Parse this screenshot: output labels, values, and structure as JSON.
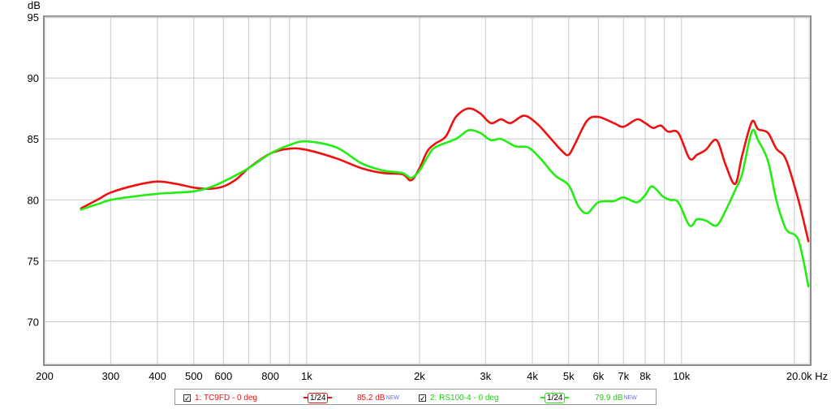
{
  "chart_data": {
    "type": "line",
    "ylabel": "dB",
    "xunit": "Hz",
    "xscale": "log",
    "xlim": [
      200,
      22000
    ],
    "ylim": [
      66.5,
      95
    ],
    "yticks": [
      {
        "value": 95,
        "label": "95"
      },
      {
        "value": 90,
        "label": "90"
      },
      {
        "value": 85,
        "label": "85"
      },
      {
        "value": 80,
        "label": "80"
      },
      {
        "value": 75,
        "label": "75"
      },
      {
        "value": 70,
        "label": "70"
      }
    ],
    "xgrid": [
      300,
      400,
      500,
      600,
      700,
      800,
      900,
      1000,
      2000,
      3000,
      4000,
      5000,
      6000,
      7000,
      8000,
      9000,
      10000,
      20000
    ],
    "xticks": [
      {
        "value": 200,
        "label": "200"
      },
      {
        "value": 300,
        "label": "300"
      },
      {
        "value": 400,
        "label": "400"
      },
      {
        "value": 500,
        "label": "500"
      },
      {
        "value": 600,
        "label": "600"
      },
      {
        "value": 800,
        "label": "800"
      },
      {
        "value": 1000,
        "label": "1k"
      },
      {
        "value": 2000,
        "label": "2k"
      },
      {
        "value": 3000,
        "label": "3k"
      },
      {
        "value": 4000,
        "label": "4k"
      },
      {
        "value": 5000,
        "label": "5k"
      },
      {
        "value": 6000,
        "label": "6k"
      },
      {
        "value": 7000,
        "label": "7k"
      },
      {
        "value": 8000,
        "label": "8k"
      },
      {
        "value": 10000,
        "label": "10k"
      },
      {
        "value": 20000,
        "label": "20.0k Hz"
      }
    ],
    "series": [
      {
        "name": "1: TC9FD - 0 deg",
        "color": "#ee1111",
        "smoothing": "1/24",
        "level": "85.2 dB",
        "level_badge": "NEW",
        "points": [
          [
            250,
            79.3
          ],
          [
            280,
            80.1
          ],
          [
            300,
            80.6
          ],
          [
            350,
            81.2
          ],
          [
            400,
            81.5
          ],
          [
            450,
            81.3
          ],
          [
            500,
            81.0
          ],
          [
            550,
            80.9
          ],
          [
            600,
            81.1
          ],
          [
            650,
            81.7
          ],
          [
            700,
            82.6
          ],
          [
            800,
            83.8
          ],
          [
            900,
            84.2
          ],
          [
            1000,
            84.1
          ],
          [
            1200,
            83.4
          ],
          [
            1400,
            82.6
          ],
          [
            1600,
            82.2
          ],
          [
            1800,
            82.1
          ],
          [
            1900,
            81.6
          ],
          [
            2000,
            82.6
          ],
          [
            2100,
            84.0
          ],
          [
            2200,
            84.6
          ],
          [
            2350,
            85.2
          ],
          [
            2500,
            86.8
          ],
          [
            2700,
            87.5
          ],
          [
            2900,
            87.1
          ],
          [
            3100,
            86.3
          ],
          [
            3300,
            86.6
          ],
          [
            3500,
            86.3
          ],
          [
            3800,
            86.9
          ],
          [
            4100,
            86.3
          ],
          [
            4400,
            85.3
          ],
          [
            4800,
            84.0
          ],
          [
            5000,
            83.7
          ],
          [
            5200,
            84.6
          ],
          [
            5600,
            86.5
          ],
          [
            6000,
            86.8
          ],
          [
            6600,
            86.3
          ],
          [
            7000,
            86.0
          ],
          [
            7600,
            86.6
          ],
          [
            8000,
            86.3
          ],
          [
            8400,
            85.9
          ],
          [
            8800,
            86.1
          ],
          [
            9200,
            85.6
          ],
          [
            9800,
            85.5
          ],
          [
            10500,
            83.4
          ],
          [
            11000,
            83.7
          ],
          [
            11600,
            84.1
          ],
          [
            12400,
            84.9
          ],
          [
            13100,
            82.9
          ],
          [
            13900,
            81.3
          ],
          [
            14500,
            83.6
          ],
          [
            15400,
            86.4
          ],
          [
            16000,
            85.8
          ],
          [
            17000,
            85.5
          ],
          [
            17900,
            84.2
          ],
          [
            19000,
            83.3
          ],
          [
            20500,
            80.0
          ],
          [
            21800,
            76.6
          ]
        ]
      },
      {
        "name": "2: RS100-4 - 0 deg",
        "color": "#22ee11",
        "smoothing": "1/24",
        "level": "79.9 dB",
        "level_badge": "NEW",
        "points": [
          [
            250,
            79.2
          ],
          [
            280,
            79.7
          ],
          [
            300,
            80.0
          ],
          [
            350,
            80.3
          ],
          [
            400,
            80.5
          ],
          [
            450,
            80.6
          ],
          [
            500,
            80.7
          ],
          [
            550,
            81.0
          ],
          [
            600,
            81.5
          ],
          [
            700,
            82.6
          ],
          [
            800,
            83.8
          ],
          [
            900,
            84.5
          ],
          [
            1000,
            84.8
          ],
          [
            1200,
            84.3
          ],
          [
            1400,
            83.0
          ],
          [
            1600,
            82.4
          ],
          [
            1800,
            82.2
          ],
          [
            1900,
            81.8
          ],
          [
            2000,
            82.4
          ],
          [
            2100,
            83.5
          ],
          [
            2200,
            84.3
          ],
          [
            2500,
            85.0
          ],
          [
            2700,
            85.7
          ],
          [
            2900,
            85.5
          ],
          [
            3100,
            84.9
          ],
          [
            3300,
            85.0
          ],
          [
            3600,
            84.4
          ],
          [
            3900,
            84.3
          ],
          [
            4200,
            83.4
          ],
          [
            4600,
            82.0
          ],
          [
            5000,
            81.2
          ],
          [
            5300,
            79.5
          ],
          [
            5600,
            78.9
          ],
          [
            6000,
            79.8
          ],
          [
            6600,
            79.9
          ],
          [
            7000,
            80.2
          ],
          [
            7600,
            79.8
          ],
          [
            8000,
            80.4
          ],
          [
            8300,
            81.1
          ],
          [
            8600,
            80.8
          ],
          [
            8900,
            80.3
          ],
          [
            9300,
            80.0
          ],
          [
            9800,
            79.8
          ],
          [
            10500,
            77.9
          ],
          [
            11000,
            78.4
          ],
          [
            11600,
            78.3
          ],
          [
            12400,
            77.9
          ],
          [
            13100,
            79.1
          ],
          [
            13900,
            80.8
          ],
          [
            14500,
            82.1
          ],
          [
            15400,
            85.6
          ],
          [
            16000,
            84.9
          ],
          [
            17000,
            83.2
          ],
          [
            17900,
            80.0
          ],
          [
            19000,
            77.6
          ],
          [
            20500,
            76.7
          ],
          [
            21800,
            72.9
          ]
        ]
      }
    ]
  },
  "legend": {
    "check_glyph": "✓"
  }
}
